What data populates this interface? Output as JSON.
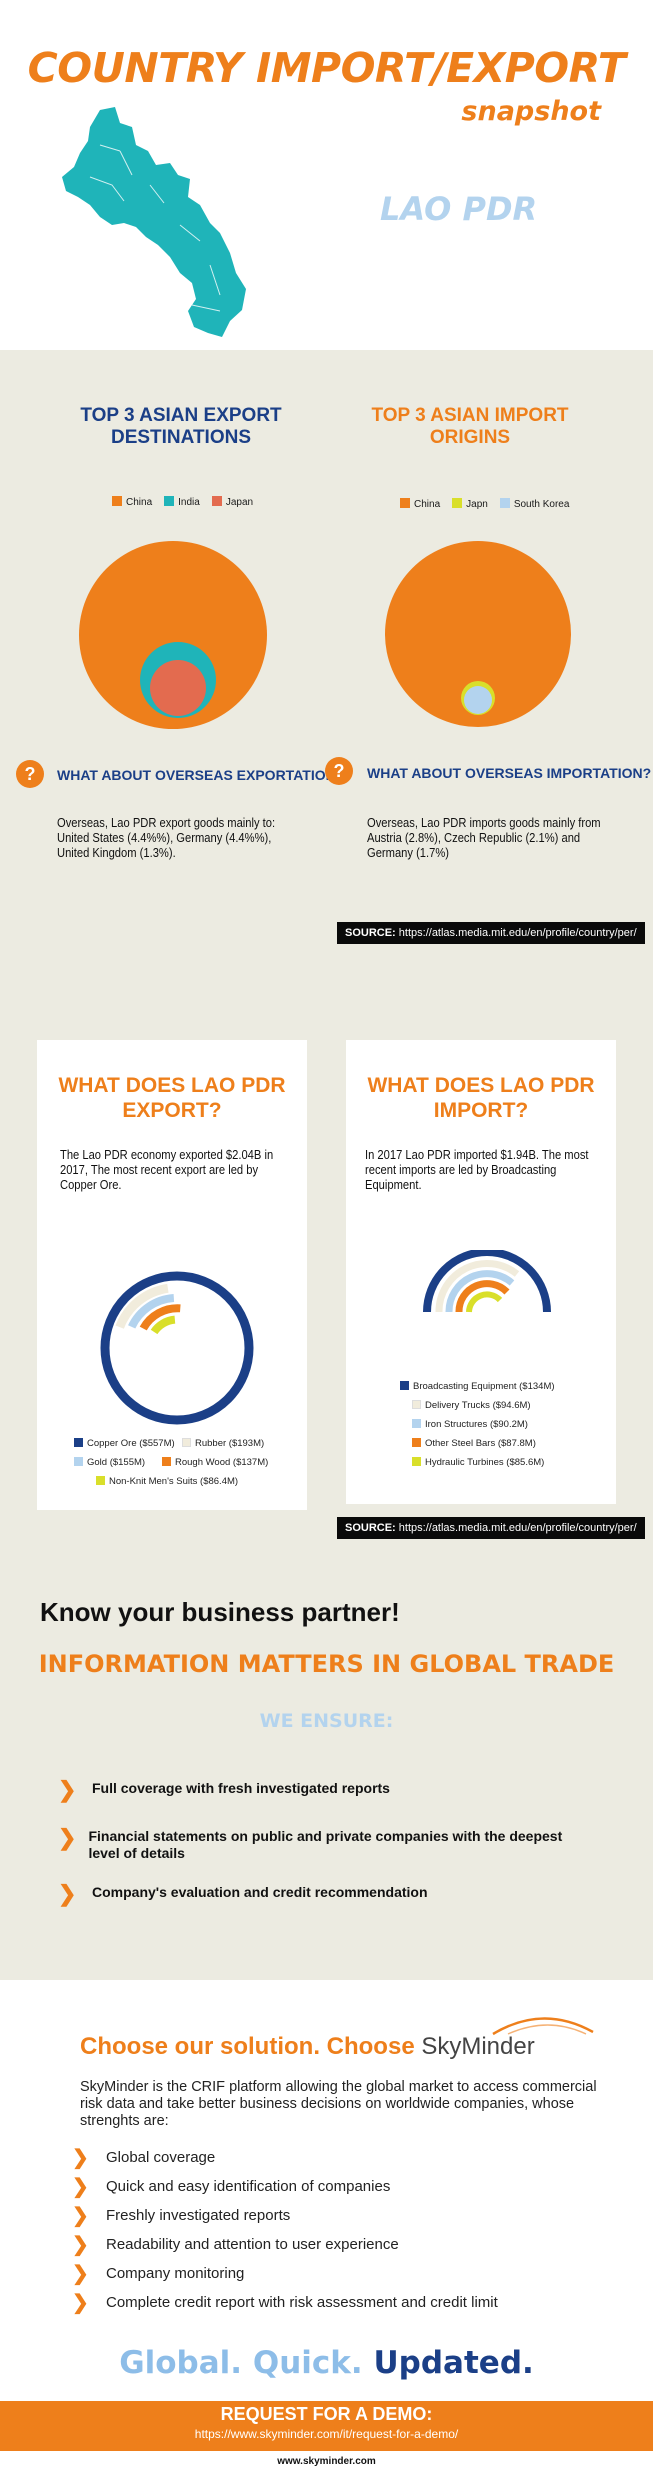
{
  "header": {
    "title": "COUNTRY IMPORT/EXPORT",
    "subtitle": "snapshot",
    "country": "LAO PDR",
    "map_color": "#1fb4b9"
  },
  "top3": {
    "export_title": "TOP 3 ASIAN EXPORT DESTINATIONS",
    "import_title": "TOP 3 ASIAN IMPORT ORIGINS",
    "export_legend": [
      {
        "label": "China",
        "color": "#ee7f1b"
      },
      {
        "label": "India",
        "color": "#1fb4b9"
      },
      {
        "label": "Japan",
        "color": "#e36b4f"
      }
    ],
    "import_legend": [
      {
        "label": "China",
        "color": "#ee7f1b"
      },
      {
        "label": "Japn",
        "color": "#d9df2a"
      },
      {
        "label": "South Korea",
        "color": "#b3d3ee"
      }
    ],
    "overseas_export_q": "WHAT ABOUT OVERSEAS EXPORTATION?",
    "overseas_import_q": "WHAT ABOUT OVERSEAS IMPORTATION?",
    "overseas_export_text": "Overseas, Lao PDR export goods mainly to: United States (4.4%%), Germany (4.4%%), United Kingdom (1.3%).",
    "overseas_import_text": "Overseas, Lao PDR imports goods mainly  from Austria (2.8%), Czech Republic (2.1%) and Germany (1.7%)",
    "question_mark": "?",
    "source_label": "SOURCE:",
    "source_url": "https://atlas.media.mit.edu/en/profile/country/per/"
  },
  "export_card": {
    "title": "WHAT DOES LAO PDR EXPORT?",
    "text": "The Lao PDR economy exported $2.04B in 2017, The most recent export are led by Copper Ore.",
    "legend": [
      {
        "label": "Copper Ore ($557M)",
        "color": "#1b3f87"
      },
      {
        "label": "Rubber ($193M)",
        "color": "#f1ecdc"
      },
      {
        "label": "Gold ($155M)",
        "color": "#b3d3ee"
      },
      {
        "label": "Rough Wood ($137M)",
        "color": "#ee7f1b"
      },
      {
        "label": "Non-Knit Men's Suits ($86.4M)",
        "color": "#d9df2a"
      }
    ]
  },
  "import_card": {
    "title": "WHAT DOES LAO PDR IMPORT?",
    "text": "In 2017 Lao PDR imported $1.94B. The most recent imports are led by Broadcasting Equipment.",
    "legend": [
      {
        "label": "Broadcasting Equipment ($134M)",
        "color": "#1b3f87"
      },
      {
        "label": "Delivery Trucks ($94.6M)",
        "color": "#f1ecdc"
      },
      {
        "label": "Iron Structures ($90.2M)",
        "color": "#b3d3ee"
      },
      {
        "label": "Other Steel Bars ($87.8M)",
        "color": "#ee7f1b"
      },
      {
        "label": "Hydraulic Turbines ($85.6M)",
        "color": "#d9df2a"
      }
    ]
  },
  "partner": {
    "know": "Know your business partner!",
    "info": "INFORMATION MATTERS IN GLOBAL TRADE",
    "ensure": "WE ENSURE:",
    "bullets": [
      "Full coverage with fresh investigated reports",
      "Financial statements on public and private companies with the deepest level of details",
      "Company's evaluation and credit recommendation"
    ]
  },
  "solution": {
    "title": "Choose our solution. Choose",
    "brand": "SkyMinder",
    "desc": "SkyMinder is the CRIF platform allowing the global market to access commercial risk data and take better business decisions on worldwide companies, whose strenghts are:",
    "features": [
      "Global coverage",
      "Quick and easy identification of companies",
      "Freshly investigated reports",
      "Readability and attention to user experience",
      "Company monitoring",
      "Complete credit report with risk assessment and credit limit"
    ],
    "tag1": "Global.",
    "tag2": "Quick.",
    "tag3": "Updated.",
    "demo_title": "REQUEST FOR A DEMO:",
    "demo_url": "https://www.skyminder.com/it/request-for-a-demo/",
    "footer_url": "www.skyminder.com"
  }
}
